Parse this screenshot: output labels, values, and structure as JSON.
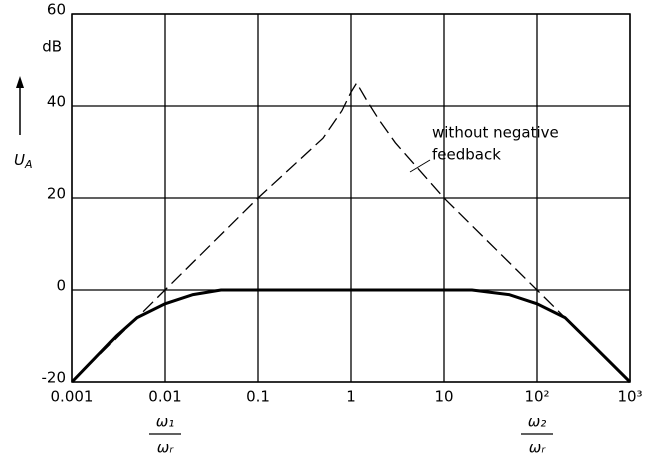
{
  "chart_data": {
    "type": "line",
    "ylabel": {
      "symbol": "U",
      "subscript": "A"
    },
    "yunit": "dB",
    "xscale": "log",
    "grid": true,
    "xlim": [
      0.001,
      1000
    ],
    "ylim": [
      -20,
      60
    ],
    "xticks": [
      0.001,
      0.01,
      0.1,
      1,
      10,
      {
        "value": 100,
        "label": "10²"
      },
      {
        "value": 1000,
        "label": "10³"
      }
    ],
    "yticks": [
      -20,
      0,
      20,
      40,
      60
    ],
    "series": [
      {
        "color": "#000000",
        "dashed": true,
        "x": [
          0.001,
          0.01,
          0.1,
          0.5,
          0.8,
          1,
          1.15,
          1.5,
          2,
          3,
          10,
          100,
          1000
        ],
        "values": [
          -20,
          0,
          20,
          33,
          39,
          43,
          45,
          41,
          37,
          32,
          20,
          0,
          -20
        ]
      },
      {
        "color": "#000000",
        "dashed": false,
        "x": [
          0.001,
          0.003,
          0.005,
          0.01,
          0.02,
          0.04,
          20,
          50,
          100,
          200,
          400,
          1000
        ],
        "values": [
          -20,
          -10,
          -6,
          -3,
          -1,
          0,
          0,
          -1,
          -3,
          -6,
          -12,
          -20
        ]
      }
    ],
    "annotation": [
      "without negative",
      "feedback"
    ],
    "x_markers": [
      {
        "value": 0.01,
        "num": "ω₁",
        "den": "ωᵣ"
      },
      {
        "value": 100,
        "num": "ω₂",
        "den": "ωᵣ"
      }
    ]
  }
}
